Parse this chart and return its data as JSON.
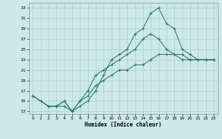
{
  "xlabel": "Humidex (Indice chaleur)",
  "bg_color": "#cce8e8",
  "grid_color": "#aacccc",
  "line_color": "#2a7a6a",
  "xlim": [
    -0.5,
    23.5
  ],
  "ylim": [
    12.5,
    34
  ],
  "xticks": [
    0,
    1,
    2,
    3,
    4,
    5,
    6,
    7,
    8,
    9,
    10,
    11,
    12,
    13,
    14,
    15,
    16,
    17,
    18,
    19,
    20,
    21,
    22,
    23
  ],
  "yticks": [
    13,
    15,
    17,
    19,
    21,
    23,
    25,
    27,
    29,
    31,
    33
  ],
  "line1_x": [
    0,
    1,
    2,
    3,
    4,
    5,
    6,
    7,
    8,
    9,
    10,
    11,
    12,
    13,
    14,
    15,
    16,
    17,
    18,
    19,
    20,
    21,
    22,
    23
  ],
  "line1_y": [
    16,
    15,
    14,
    14,
    14,
    13,
    14,
    15,
    17,
    20,
    23,
    24,
    25,
    28,
    29,
    32,
    33,
    30,
    29,
    25,
    24,
    23,
    23,
    23
  ],
  "line2_x": [
    0,
    2,
    3,
    4,
    5,
    6,
    7,
    8,
    9,
    10,
    11,
    12,
    13,
    14,
    15,
    16,
    17,
    18,
    19,
    20,
    21,
    22,
    23
  ],
  "line2_y": [
    16,
    14,
    14,
    15,
    13,
    15,
    17,
    20,
    21,
    22,
    23,
    24,
    25,
    27,
    28,
    27,
    25,
    24,
    23,
    23,
    23,
    23,
    23
  ],
  "line3_x": [
    0,
    2,
    3,
    4,
    5,
    6,
    7,
    8,
    9,
    10,
    11,
    12,
    13,
    14,
    15,
    16,
    17,
    18,
    19,
    20,
    21,
    22,
    23
  ],
  "line3_y": [
    16,
    14,
    14,
    15,
    13,
    15,
    16,
    18,
    19,
    20,
    21,
    21,
    22,
    22,
    23,
    24,
    24,
    24,
    24,
    23,
    23,
    23,
    23
  ]
}
